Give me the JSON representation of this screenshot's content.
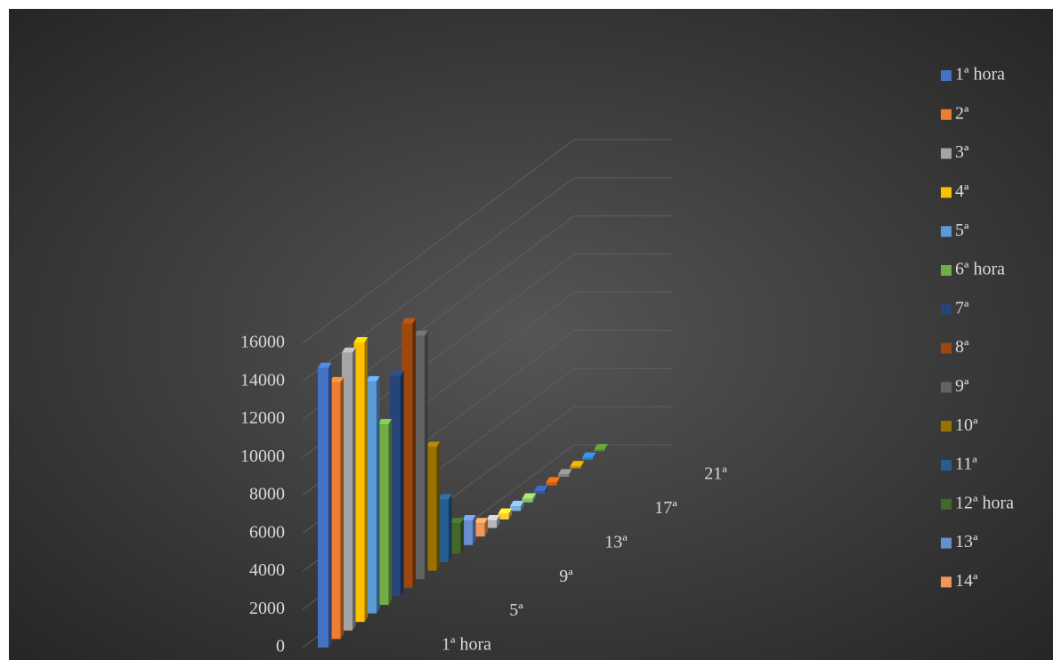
{
  "chart_data": {
    "type": "bar3d",
    "series": [
      {
        "name": "1ª hora",
        "color": "#4472c4",
        "values": [
          14700
        ]
      },
      {
        "name": "2ª",
        "color": "#ed7d31",
        "values": [
          13500
        ]
      },
      {
        "name": "3ª",
        "color": "#a5a5a5",
        "values": [
          14600
        ]
      },
      {
        "name": "4ª",
        "color": "#ffc000",
        "values": [
          14700
        ]
      },
      {
        "name": "5ª",
        "color": "#5b9bd5",
        "values": [
          12200
        ]
      },
      {
        "name": "6ª hora",
        "color": "#70ad47",
        "values": [
          9500
        ]
      },
      {
        "name": "7ª",
        "color": "#264478",
        "values": [
          11600
        ]
      },
      {
        "name": "8ª",
        "color": "#9e480e",
        "values": [
          13900
        ]
      },
      {
        "name": "9ª",
        "color": "#636363",
        "values": [
          12800
        ]
      },
      {
        "name": "10ª",
        "color": "#997300",
        "values": [
          6500
        ]
      },
      {
        "name": "11ª",
        "color": "#255e91",
        "values": [
          3300
        ]
      },
      {
        "name": "12ª hora",
        "color": "#43682b",
        "values": [
          1600
        ]
      },
      {
        "name": "13ª",
        "color": "#698ed0",
        "values": [
          1300
        ]
      },
      {
        "name": "14ª",
        "color": "#f1975a",
        "values": [
          700
        ]
      },
      {
        "color": "#b7b7b7",
        "values": [
          400
        ]
      },
      {
        "color": "#ffcd33",
        "values": [
          300
        ]
      },
      {
        "color": "#7cafdd",
        "values": [
          250
        ]
      },
      {
        "color": "#8cc168",
        "values": [
          200
        ]
      },
      {
        "color": "#335aa1",
        "values": [
          150
        ]
      },
      {
        "color": "#d26012",
        "values": [
          150
        ]
      },
      {
        "color": "#848484",
        "values": [
          120
        ]
      },
      {
        "color": "#cc9a00",
        "values": [
          100
        ]
      },
      {
        "color": "#327dc2",
        "values": [
          100
        ]
      },
      {
        "color": "#5a8a39",
        "values": [
          100
        ]
      }
    ],
    "depth_labels": [
      {
        "index": 0,
        "label": "1ª hora"
      },
      {
        "index": 4,
        "label": "5ª"
      },
      {
        "index": 8,
        "label": "9ª"
      },
      {
        "index": 12,
        "label": "13ª"
      },
      {
        "index": 16,
        "label": "17ª"
      },
      {
        "index": 20,
        "label": "21ª"
      }
    ],
    "ylim": [
      0,
      16000
    ],
    "yticks": [
      0,
      2000,
      4000,
      6000,
      8000,
      10000,
      12000,
      14000,
      16000
    ],
    "grid": true
  }
}
